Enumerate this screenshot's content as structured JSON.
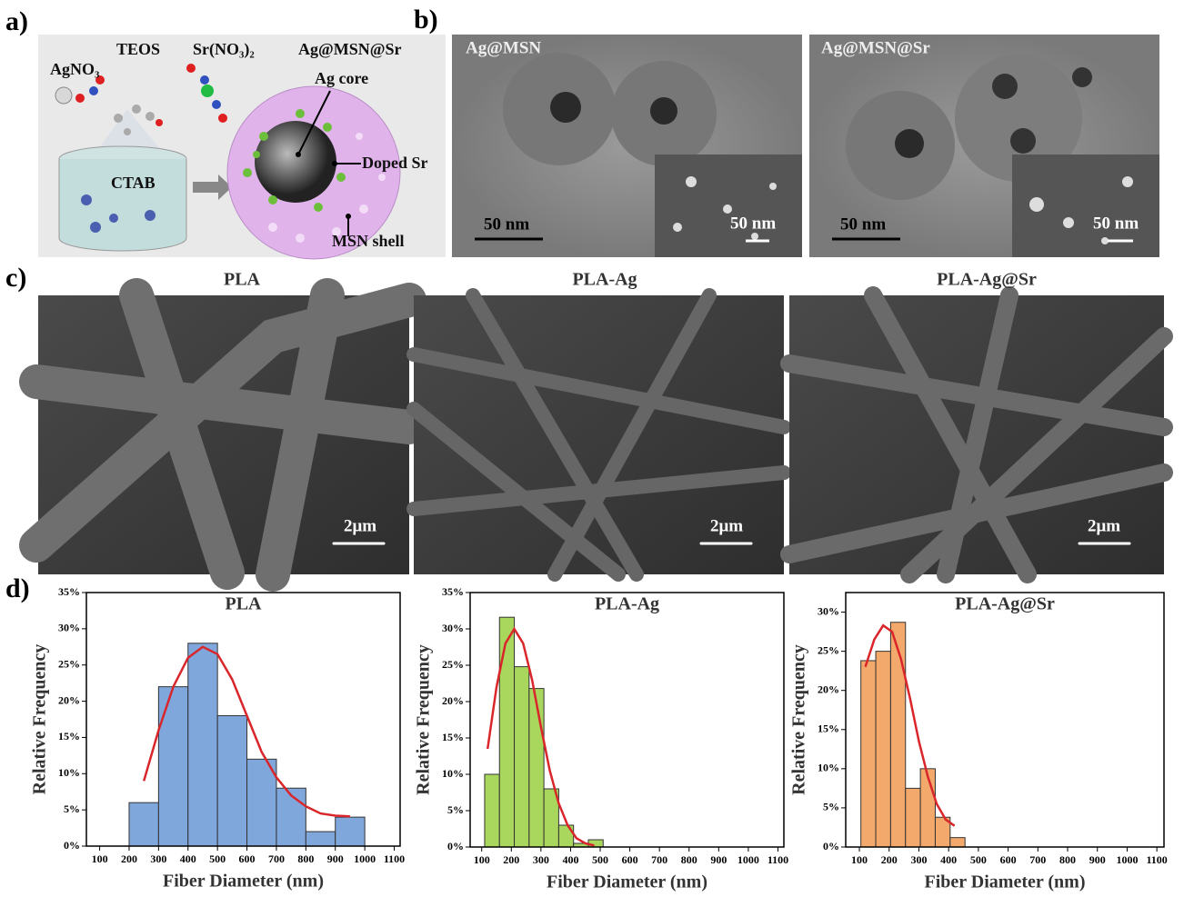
{
  "figure": {
    "panel_labels": [
      "a)",
      "b)",
      "c)",
      "d)"
    ],
    "a": {
      "agno3": "AgNO₃",
      "teos": "TEOS",
      "srno3": "Sr(NO₃)₂",
      "title": "Ag@MSN@Sr",
      "core": "Ag core",
      "doped": "Doped Sr",
      "ctab": "CTAB",
      "shell": "MSN shell"
    },
    "b": {
      "left": "Ag@MSN",
      "right": "Ag@MSN@Sr",
      "scales": [
        "50 nm",
        "50 nm",
        "50 nm",
        "50 nm"
      ]
    },
    "c": {
      "titles": [
        "PLA",
        "PLA-Ag",
        "PLA-Ag@Sr"
      ],
      "scales": [
        "2μm",
        "2μm",
        "2μm"
      ]
    }
  },
  "chart_data": [
    {
      "type": "histogram",
      "title": "PLA",
      "xlabel": "Fiber Diameter (nm)",
      "ylabel": "Relative Frequency",
      "bins": [
        200,
        300,
        400,
        500,
        600,
        700,
        800,
        900,
        1000
      ],
      "counts": [
        6,
        22,
        28,
        18,
        12,
        8,
        2,
        4
      ],
      "color": "#80a7dc",
      "fit": {
        "x": [
          250,
          300,
          350,
          400,
          450,
          500,
          550,
          600,
          650,
          700,
          750,
          800,
          850,
          900,
          950
        ],
        "values": [
          9,
          16,
          22,
          26,
          27.5,
          26.5,
          23,
          18,
          13,
          9.5,
          7,
          5.5,
          4.5,
          4.2,
          4.1
        ],
        "color": "#d9262b"
      },
      "xlim": [
        55,
        1120
      ],
      "ylim": [
        0,
        35
      ],
      "xticks": [
        100,
        200,
        300,
        400,
        500,
        600,
        700,
        800,
        900,
        1000,
        1100
      ],
      "yticks": [
        {
          "value": 0,
          "label": "0%"
        },
        {
          "value": 5,
          "label": "5%"
        },
        {
          "value": 10,
          "label": "10%"
        },
        {
          "value": 15,
          "label": "15%"
        },
        {
          "value": 20,
          "label": "20%"
        },
        {
          "value": 25,
          "label": "25%"
        },
        {
          "value": 30,
          "label": "30%"
        },
        {
          "value": 35,
          "label": "35%"
        }
      ]
    },
    {
      "type": "histogram",
      "title": "PLA-Ag",
      "xlabel": "Fiber Diameter (nm)",
      "ylabel": "Relative Frequency",
      "bins": [
        110,
        160,
        210,
        260,
        310,
        360,
        410,
        460,
        510
      ],
      "counts": [
        10,
        31.6,
        24.8,
        21.8,
        8,
        3,
        0.5,
        1
      ],
      "color": "#a9d65c",
      "fit": {
        "x": [
          120,
          150,
          180,
          210,
          240,
          270,
          300,
          330,
          360,
          390,
          420,
          450,
          480
        ],
        "values": [
          13.5,
          22,
          28,
          30,
          28,
          23,
          16.5,
          10.5,
          6,
          3,
          1.2,
          0.5,
          0.2
        ],
        "color": "#d9262b"
      },
      "xlim": [
        61,
        1120
      ],
      "ylim": [
        0,
        35
      ],
      "xticks": [
        100,
        200,
        300,
        400,
        500,
        600,
        700,
        800,
        900,
        1000,
        1100
      ],
      "yticks": [
        {
          "value": 0,
          "label": "0%"
        },
        {
          "value": 5,
          "label": "5%"
        },
        {
          "value": 10,
          "label": "10%"
        },
        {
          "value": 15,
          "label": "15%"
        },
        {
          "value": 20,
          "label": "20%"
        },
        {
          "value": 25,
          "label": "25%"
        },
        {
          "value": 30,
          "label": "30%"
        },
        {
          "value": 35,
          "label": "35%"
        }
      ]
    },
    {
      "type": "histogram",
      "title": "PLA-Ag@Sr",
      "xlabel": "Fiber Diameter (nm)",
      "ylabel": "Relative Frequency",
      "bins": [
        105,
        155,
        205,
        255,
        305,
        355,
        405,
        455
      ],
      "counts": [
        23.8,
        25,
        28.7,
        7.5,
        10,
        3.8,
        1.2
      ],
      "color": "#f3a96b",
      "fit": {
        "x": [
          120,
          150,
          180,
          210,
          240,
          270,
          300,
          330,
          360,
          390,
          420
        ],
        "values": [
          23,
          26.5,
          28.3,
          27.5,
          24,
          19,
          13.5,
          9,
          5.5,
          3.5,
          2.7
        ],
        "color": "#d9262b"
      },
      "xlim": [
        54,
        1124
      ],
      "ylim": [
        0,
        32.5
      ],
      "xticks": [
        100,
        200,
        300,
        400,
        500,
        600,
        700,
        800,
        900,
        1000,
        1100
      ],
      "yticks": [
        {
          "value": 0,
          "label": "0%"
        },
        {
          "value": 5,
          "label": "5%"
        },
        {
          "value": 10,
          "label": "10%"
        },
        {
          "value": 15,
          "label": "15%"
        },
        {
          "value": 20,
          "label": "20%"
        },
        {
          "value": 25,
          "label": "25%"
        },
        {
          "value": 30,
          "label": "30%"
        }
      ]
    }
  ]
}
